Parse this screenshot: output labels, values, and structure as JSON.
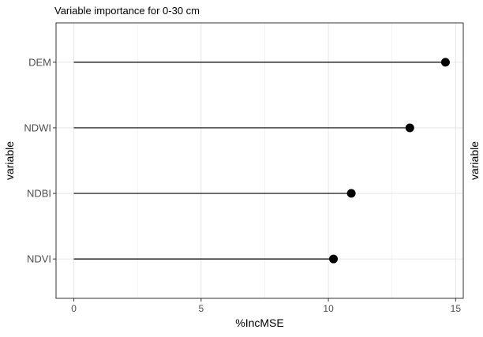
{
  "chart_data": {
    "type": "lollipop",
    "title": "Variable importance for 0-30 cm",
    "xlabel": "%IncMSE",
    "ylabel": "variable",
    "ylabel_right": "variable",
    "xlim": [
      -0.7,
      15.3
    ],
    "xticks": [
      0,
      5,
      10,
      15
    ],
    "grid": true,
    "categories": [
      "DEM",
      "NDWI",
      "NDBI",
      "NDVI"
    ],
    "values": [
      14.6,
      13.2,
      10.9,
      10.2
    ],
    "colors": {
      "stem": "#000000",
      "point": "#000000",
      "grid": "#e6e6e6",
      "panel_border": "#333333",
      "text": "#4d4d4d",
      "title": "#000000"
    }
  }
}
